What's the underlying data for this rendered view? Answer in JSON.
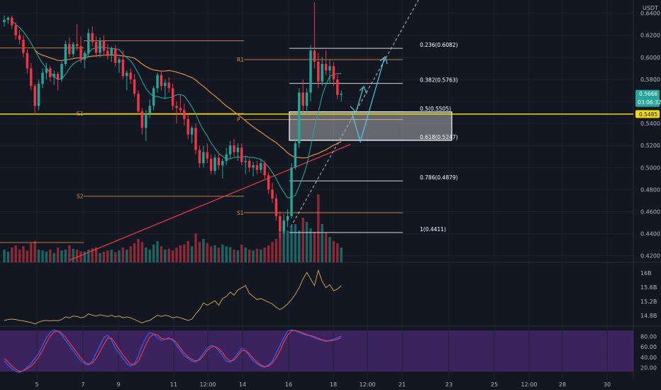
{
  "chart_data": {
    "type": "candlestick",
    "currency": "USDT",
    "price_axis_ticks": [
      "0.6400",
      "0.6200",
      "0.6000",
      "0.5800",
      "0.5600",
      "0.5400",
      "0.5200",
      "0.5000",
      "0.4800",
      "0.4600",
      "0.4400",
      "0.4200"
    ],
    "time_axis_ticks": [
      "5",
      "7",
      "9",
      "11",
      "12:00",
      "14",
      "16",
      "18",
      "12:00",
      "21",
      "23",
      "25",
      "12:00",
      "28",
      "30"
    ],
    "price_range": [
      0.414,
      0.652
    ],
    "last_price": 0.5666,
    "countdown": "03:06:32",
    "horizontal_line_level": 0.5485,
    "horizontal_line_label": "0.5485",
    "fib_levels": [
      {
        "label": "0.236(0.6082)",
        "value": 0.6082
      },
      {
        "label": "0.382(0.5763)",
        "value": 0.5763
      },
      {
        "label": "0.5(0.5505)",
        "value": 0.5505
      },
      {
        "label": "0.618(0.5247)",
        "value": 0.5247
      },
      {
        "label": "0.786(0.4879)",
        "value": 0.4879
      },
      {
        "label": "1(0.4411)",
        "value": 0.4411
      }
    ],
    "pivots": [
      {
        "label": "R1",
        "value": 0.598
      },
      {
        "label": "S1",
        "value": 0.549
      },
      {
        "label": "P",
        "value": 0.5435
      },
      {
        "label": "S2",
        "value": 0.474
      },
      {
        "label": "S1",
        "value": 0.459
      }
    ],
    "indicator_ticks": [
      "16B",
      "15.6B",
      "15.2B",
      "14.8B"
    ],
    "stoch_rsi_ticks": [
      "80.00",
      "60.00",
      "40.00",
      "20.00"
    ],
    "candles": [
      {
        "o": 0.632,
        "h": 0.638,
        "l": 0.628,
        "c": 0.634
      },
      {
        "o": 0.634,
        "h": 0.637,
        "l": 0.63,
        "c": 0.636
      },
      {
        "o": 0.636,
        "h": 0.638,
        "l": 0.626,
        "c": 0.629
      },
      {
        "o": 0.629,
        "h": 0.632,
        "l": 0.616,
        "c": 0.62
      },
      {
        "o": 0.62,
        "h": 0.625,
        "l": 0.612,
        "c": 0.616
      },
      {
        "o": 0.616,
        "h": 0.62,
        "l": 0.6,
        "c": 0.604
      },
      {
        "o": 0.604,
        "h": 0.607,
        "l": 0.585,
        "c": 0.59
      },
      {
        "o": 0.59,
        "h": 0.595,
        "l": 0.57,
        "c": 0.574
      },
      {
        "o": 0.574,
        "h": 0.576,
        "l": 0.548,
        "c": 0.556
      },
      {
        "o": 0.556,
        "h": 0.58,
        "l": 0.552,
        "c": 0.576
      },
      {
        "o": 0.576,
        "h": 0.59,
        "l": 0.572,
        "c": 0.586
      },
      {
        "o": 0.586,
        "h": 0.595,
        "l": 0.58,
        "c": 0.59
      },
      {
        "o": 0.59,
        "h": 0.592,
        "l": 0.578,
        "c": 0.582
      },
      {
        "o": 0.582,
        "h": 0.588,
        "l": 0.575,
        "c": 0.585
      },
      {
        "o": 0.585,
        "h": 0.587,
        "l": 0.57,
        "c": 0.58
      },
      {
        "o": 0.58,
        "h": 0.596,
        "l": 0.578,
        "c": 0.594
      },
      {
        "o": 0.594,
        "h": 0.615,
        "l": 0.592,
        "c": 0.612
      },
      {
        "o": 0.612,
        "h": 0.618,
        "l": 0.6,
        "c": 0.603
      },
      {
        "o": 0.603,
        "h": 0.614,
        "l": 0.6,
        "c": 0.612
      },
      {
        "o": 0.612,
        "h": 0.63,
        "l": 0.606,
        "c": 0.61
      },
      {
        "o": 0.61,
        "h": 0.619,
        "l": 0.595,
        "c": 0.598
      },
      {
        "o": 0.598,
        "h": 0.606,
        "l": 0.59,
        "c": 0.604
      },
      {
        "o": 0.604,
        "h": 0.626,
        "l": 0.6,
        "c": 0.622
      },
      {
        "o": 0.622,
        "h": 0.628,
        "l": 0.61,
        "c": 0.614
      },
      {
        "o": 0.614,
        "h": 0.619,
        "l": 0.6,
        "c": 0.604
      },
      {
        "o": 0.604,
        "h": 0.618,
        "l": 0.6,
        "c": 0.615
      },
      {
        "o": 0.615,
        "h": 0.62,
        "l": 0.602,
        "c": 0.606
      },
      {
        "o": 0.606,
        "h": 0.612,
        "l": 0.598,
        "c": 0.602
      },
      {
        "o": 0.602,
        "h": 0.61,
        "l": 0.596,
        "c": 0.608
      },
      {
        "o": 0.608,
        "h": 0.611,
        "l": 0.592,
        "c": 0.595
      },
      {
        "o": 0.595,
        "h": 0.6,
        "l": 0.586,
        "c": 0.598
      },
      {
        "o": 0.598,
        "h": 0.606,
        "l": 0.58,
        "c": 0.583
      },
      {
        "o": 0.583,
        "h": 0.588,
        "l": 0.57,
        "c": 0.586
      },
      {
        "o": 0.586,
        "h": 0.59,
        "l": 0.576,
        "c": 0.58
      },
      {
        "o": 0.58,
        "h": 0.585,
        "l": 0.564,
        "c": 0.567
      },
      {
        "o": 0.567,
        "h": 0.57,
        "l": 0.548,
        "c": 0.551
      },
      {
        "o": 0.551,
        "h": 0.554,
        "l": 0.53,
        "c": 0.536
      },
      {
        "o": 0.536,
        "h": 0.552,
        "l": 0.524,
        "c": 0.549
      },
      {
        "o": 0.549,
        "h": 0.562,
        "l": 0.545,
        "c": 0.556
      },
      {
        "o": 0.556,
        "h": 0.574,
        "l": 0.552,
        "c": 0.572
      },
      {
        "o": 0.572,
        "h": 0.586,
        "l": 0.568,
        "c": 0.584
      },
      {
        "o": 0.584,
        "h": 0.588,
        "l": 0.57,
        "c": 0.574
      },
      {
        "o": 0.574,
        "h": 0.58,
        "l": 0.562,
        "c": 0.577
      },
      {
        "o": 0.577,
        "h": 0.582,
        "l": 0.568,
        "c": 0.572
      },
      {
        "o": 0.572,
        "h": 0.576,
        "l": 0.552,
        "c": 0.556
      },
      {
        "o": 0.556,
        "h": 0.56,
        "l": 0.54,
        "c": 0.554
      },
      {
        "o": 0.554,
        "h": 0.566,
        "l": 0.548,
        "c": 0.552
      },
      {
        "o": 0.552,
        "h": 0.558,
        "l": 0.538,
        "c": 0.544
      },
      {
        "o": 0.544,
        "h": 0.548,
        "l": 0.526,
        "c": 0.53
      },
      {
        "o": 0.53,
        "h": 0.538,
        "l": 0.522,
        "c": 0.536
      },
      {
        "o": 0.536,
        "h": 0.54,
        "l": 0.512,
        "c": 0.516
      },
      {
        "o": 0.516,
        "h": 0.52,
        "l": 0.5,
        "c": 0.504
      },
      {
        "o": 0.504,
        "h": 0.52,
        "l": 0.5,
        "c": 0.514
      },
      {
        "o": 0.514,
        "h": 0.522,
        "l": 0.504,
        "c": 0.508
      },
      {
        "o": 0.508,
        "h": 0.512,
        "l": 0.494,
        "c": 0.497
      },
      {
        "o": 0.497,
        "h": 0.512,
        "l": 0.494,
        "c": 0.509
      },
      {
        "o": 0.509,
        "h": 0.514,
        "l": 0.498,
        "c": 0.502
      },
      {
        "o": 0.502,
        "h": 0.508,
        "l": 0.49,
        "c": 0.506
      },
      {
        "o": 0.506,
        "h": 0.518,
        "l": 0.502,
        "c": 0.512
      },
      {
        "o": 0.512,
        "h": 0.524,
        "l": 0.508,
        "c": 0.52
      },
      {
        "o": 0.52,
        "h": 0.526,
        "l": 0.51,
        "c": 0.514
      },
      {
        "o": 0.514,
        "h": 0.522,
        "l": 0.506,
        "c": 0.518
      },
      {
        "o": 0.518,
        "h": 0.522,
        "l": 0.502,
        "c": 0.505
      },
      {
        "o": 0.505,
        "h": 0.51,
        "l": 0.494,
        "c": 0.506
      },
      {
        "o": 0.506,
        "h": 0.508,
        "l": 0.496,
        "c": 0.5
      },
      {
        "o": 0.5,
        "h": 0.505,
        "l": 0.492,
        "c": 0.502
      },
      {
        "o": 0.502,
        "h": 0.506,
        "l": 0.494,
        "c": 0.498
      },
      {
        "o": 0.498,
        "h": 0.508,
        "l": 0.495,
        "c": 0.504
      },
      {
        "o": 0.504,
        "h": 0.506,
        "l": 0.49,
        "c": 0.493
      },
      {
        "o": 0.493,
        "h": 0.496,
        "l": 0.476,
        "c": 0.48
      },
      {
        "o": 0.48,
        "h": 0.486,
        "l": 0.468,
        "c": 0.472
      },
      {
        "o": 0.472,
        "h": 0.476,
        "l": 0.452,
        "c": 0.456
      },
      {
        "o": 0.456,
        "h": 0.46,
        "l": 0.436,
        "c": 0.442
      },
      {
        "o": 0.442,
        "h": 0.458,
        "l": 0.44,
        "c": 0.452
      },
      {
        "o": 0.452,
        "h": 0.462,
        "l": 0.446,
        "c": 0.456
      },
      {
        "o": 0.456,
        "h": 0.504,
        "l": 0.454,
        "c": 0.5
      },
      {
        "o": 0.5,
        "h": 0.526,
        "l": 0.498,
        "c": 0.522
      },
      {
        "o": 0.522,
        "h": 0.572,
        "l": 0.518,
        "c": 0.568
      },
      {
        "o": 0.568,
        "h": 0.58,
        "l": 0.55,
        "c": 0.556
      },
      {
        "o": 0.556,
        "h": 0.572,
        "l": 0.55,
        "c": 0.568
      },
      {
        "o": 0.568,
        "h": 0.611,
        "l": 0.56,
        "c": 0.606
      },
      {
        "o": 0.606,
        "h": 0.65,
        "l": 0.59,
        "c": 0.596
      },
      {
        "o": 0.596,
        "h": 0.604,
        "l": 0.572,
        "c": 0.578
      },
      {
        "o": 0.578,
        "h": 0.6,
        "l": 0.574,
        "c": 0.594
      },
      {
        "o": 0.594,
        "h": 0.606,
        "l": 0.584,
        "c": 0.588
      },
      {
        "o": 0.588,
        "h": 0.598,
        "l": 0.576,
        "c": 0.592
      },
      {
        "o": 0.592,
        "h": 0.596,
        "l": 0.574,
        "c": 0.58
      },
      {
        "o": 0.58,
        "h": 0.584,
        "l": 0.562,
        "c": 0.566
      },
      {
        "o": 0.566,
        "h": 0.57,
        "l": 0.56,
        "c": 0.567
      }
    ],
    "volume": [
      0.3,
      0.25,
      0.35,
      0.4,
      0.3,
      0.38,
      0.28,
      0.45,
      0.5,
      0.3,
      0.28,
      0.25,
      0.3,
      0.22,
      0.35,
      0.28,
      0.3,
      0.4,
      0.32,
      0.3,
      0.26,
      0.25,
      0.3,
      0.33,
      0.35,
      0.22,
      0.25,
      0.28,
      0.3,
      0.24,
      0.28,
      0.35,
      0.3,
      0.38,
      0.45,
      0.55,
      0.48,
      0.35,
      0.3,
      0.42,
      0.5,
      0.38,
      0.3,
      0.32,
      0.28,
      0.35,
      0.4,
      0.42,
      0.5,
      0.38,
      0.68,
      0.48,
      0.55,
      0.45,
      0.38,
      0.4,
      0.35,
      0.42,
      0.38,
      0.36,
      0.3,
      0.28,
      0.42,
      0.35,
      0.3,
      0.28,
      0.32,
      0.3,
      0.35,
      0.4,
      0.48,
      0.55,
      0.7,
      0.95,
      0.75,
      0.85,
      0.9,
      0.75,
      1.05,
      0.95,
      0.8,
      0.72,
      1.6,
      0.9,
      0.7,
      0.6,
      0.5,
      0.45,
      0.35
    ],
    "obv": [
      14.8,
      14.82,
      14.83,
      14.82,
      14.8,
      14.79,
      14.77,
      14.75,
      14.72,
      14.76,
      14.79,
      14.8,
      14.79,
      14.8,
      14.79,
      14.82,
      14.88,
      14.86,
      14.9,
      14.89,
      14.86,
      14.88,
      14.95,
      14.92,
      14.9,
      14.93,
      14.91,
      14.89,
      14.92,
      14.88,
      14.9,
      14.86,
      14.88,
      14.86,
      14.82,
      14.78,
      14.74,
      14.78,
      14.8,
      14.86,
      14.92,
      14.89,
      14.92,
      14.9,
      14.86,
      14.88,
      14.86,
      14.83,
      14.8,
      14.83,
      14.95,
      15.05,
      15.2,
      15.15,
      15.2,
      15.25,
      15.15,
      15.3,
      15.35,
      15.45,
      15.38,
      15.5,
      15.55,
      15.6,
      15.42,
      15.35,
      15.28,
      15.3,
      15.26,
      15.22,
      15.18,
      15.1,
      15.05,
      15.1,
      15.18,
      15.28,
      15.4,
      15.55,
      15.75,
      15.9,
      15.75,
      15.6,
      15.95,
      15.7,
      15.55,
      15.62,
      15.48,
      15.52,
      15.6
    ],
    "stoch_k": [
      30,
      22,
      15,
      10,
      8,
      12,
      18,
      25,
      35,
      45,
      60,
      75,
      85,
      90,
      88,
      80,
      70,
      60,
      50,
      40,
      30,
      25,
      22,
      30,
      45,
      60,
      75,
      80,
      70,
      55,
      45,
      35,
      25,
      20,
      25,
      40,
      60,
      75,
      85,
      82,
      75,
      70,
      72,
      75,
      70,
      60,
      50,
      40,
      35,
      30,
      28,
      35,
      45,
      55,
      60,
      58,
      50,
      40,
      30,
      28,
      35,
      45,
      55,
      50,
      40,
      30,
      25,
      20,
      18,
      22,
      30,
      45,
      60,
      75,
      88,
      90,
      88,
      85,
      82,
      80,
      78,
      75,
      72,
      70,
      68,
      70,
      72,
      75,
      78
    ],
    "stoch_d": [
      35,
      28,
      20,
      14,
      10,
      11,
      15,
      20,
      28,
      38,
      50,
      65,
      78,
      86,
      88,
      84,
      76,
      66,
      56,
      46,
      36,
      28,
      24,
      26,
      35,
      48,
      62,
      74,
      74,
      64,
      52,
      42,
      32,
      24,
      23,
      30,
      45,
      62,
      76,
      82,
      80,
      74,
      72,
      73,
      72,
      65,
      55,
      45,
      38,
      33,
      30,
      32,
      40,
      50,
      57,
      58,
      54,
      46,
      36,
      30,
      32,
      40,
      50,
      50,
      44,
      35,
      28,
      22,
      19,
      20,
      26,
      36,
      50,
      66,
      80,
      88,
      89,
      87,
      84,
      81,
      79,
      77,
      74,
      71,
      69,
      69,
      70,
      72,
      75
    ]
  }
}
